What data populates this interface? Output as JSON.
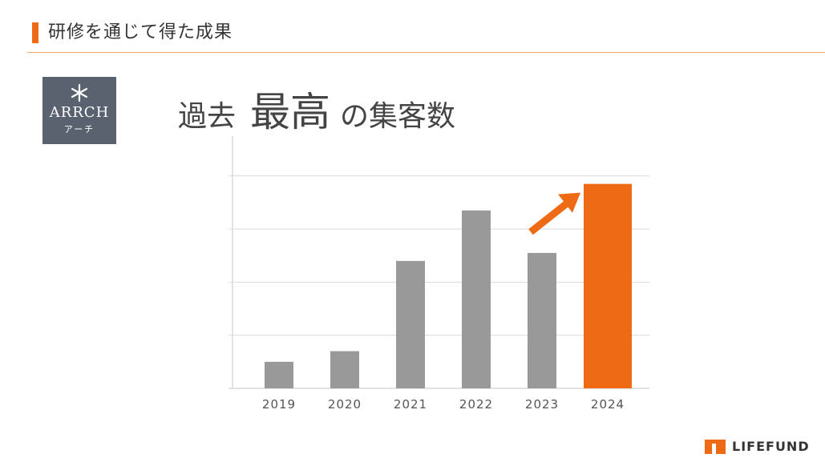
{
  "header": {
    "title": "研修を通じて得た成果"
  },
  "logo": {
    "name": "ARRCH",
    "kana": "アーチ"
  },
  "headline": {
    "part1": "過去",
    "part2": "最高",
    "part3": "の集客数"
  },
  "brand": {
    "name": "LIFEFUND"
  },
  "colors": {
    "accent": "#ee6a14",
    "bar": "#999999",
    "grid": "#d9d9d9",
    "logo_bg": "#5a6270"
  },
  "chart_data": {
    "type": "bar",
    "categories": [
      "2019",
      "2020",
      "2021",
      "2022",
      "2023",
      "2024"
    ],
    "values": [
      10,
      14,
      48,
      67,
      51,
      77
    ],
    "highlight": "2024",
    "ylim": [
      0,
      95
    ],
    "grid": true,
    "annotation": "arrow-up-to-2024",
    "title": "",
    "xlabel": "",
    "ylabel": ""
  }
}
